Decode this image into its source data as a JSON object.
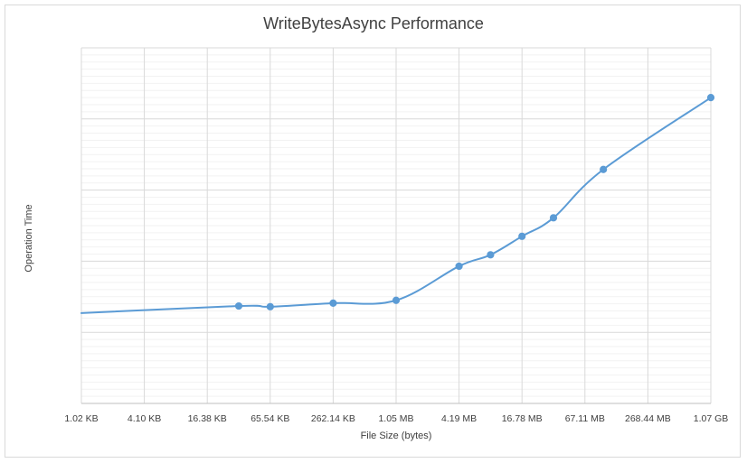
{
  "chart_data": {
    "type": "line",
    "title": "WriteBytesAsync Performance",
    "xlabel": "File Size (bytes)",
    "ylabel": "Operation Time",
    "x_scale": "log2",
    "x_ticks": [
      "1.02 KB",
      "4.10 KB",
      "16.38 KB",
      "65.54 KB",
      "262.14 KB",
      "1.05 MB",
      "4.19 MB",
      "16.78 MB",
      "67.11 MB",
      "268.44 MB",
      "1.07 GB"
    ],
    "x_tick_bytes": [
      1024,
      4096,
      16384,
      65536,
      262144,
      1048576,
      4194304,
      16777216,
      67108864,
      268435456,
      1073741824
    ],
    "y_tick_labels_shown": false,
    "ylim": [
      0,
      5
    ],
    "series": [
      {
        "color": "#5b9bd5",
        "points": [
          {
            "x_bytes": 1024,
            "y": 1.27,
            "marker": false
          },
          {
            "x_bytes": 32768,
            "y": 1.37,
            "marker": true
          },
          {
            "x_bytes": 65536,
            "y": 1.36,
            "marker": true
          },
          {
            "x_bytes": 262144,
            "y": 1.41,
            "marker": true
          },
          {
            "x_bytes": 1048576,
            "y": 1.45,
            "marker": true
          },
          {
            "x_bytes": 4194304,
            "y": 1.93,
            "marker": true
          },
          {
            "x_bytes": 8388608,
            "y": 2.09,
            "marker": true
          },
          {
            "x_bytes": 16777216,
            "y": 2.35,
            "marker": true
          },
          {
            "x_bytes": 33554432,
            "y": 2.61,
            "marker": true
          },
          {
            "x_bytes": 100663296,
            "y": 3.29,
            "marker": true
          },
          {
            "x_bytes": 1073741824,
            "y": 4.3,
            "marker": true
          }
        ]
      }
    ],
    "grid": {
      "major_x": true,
      "major_y": true,
      "minor_y": true
    }
  }
}
